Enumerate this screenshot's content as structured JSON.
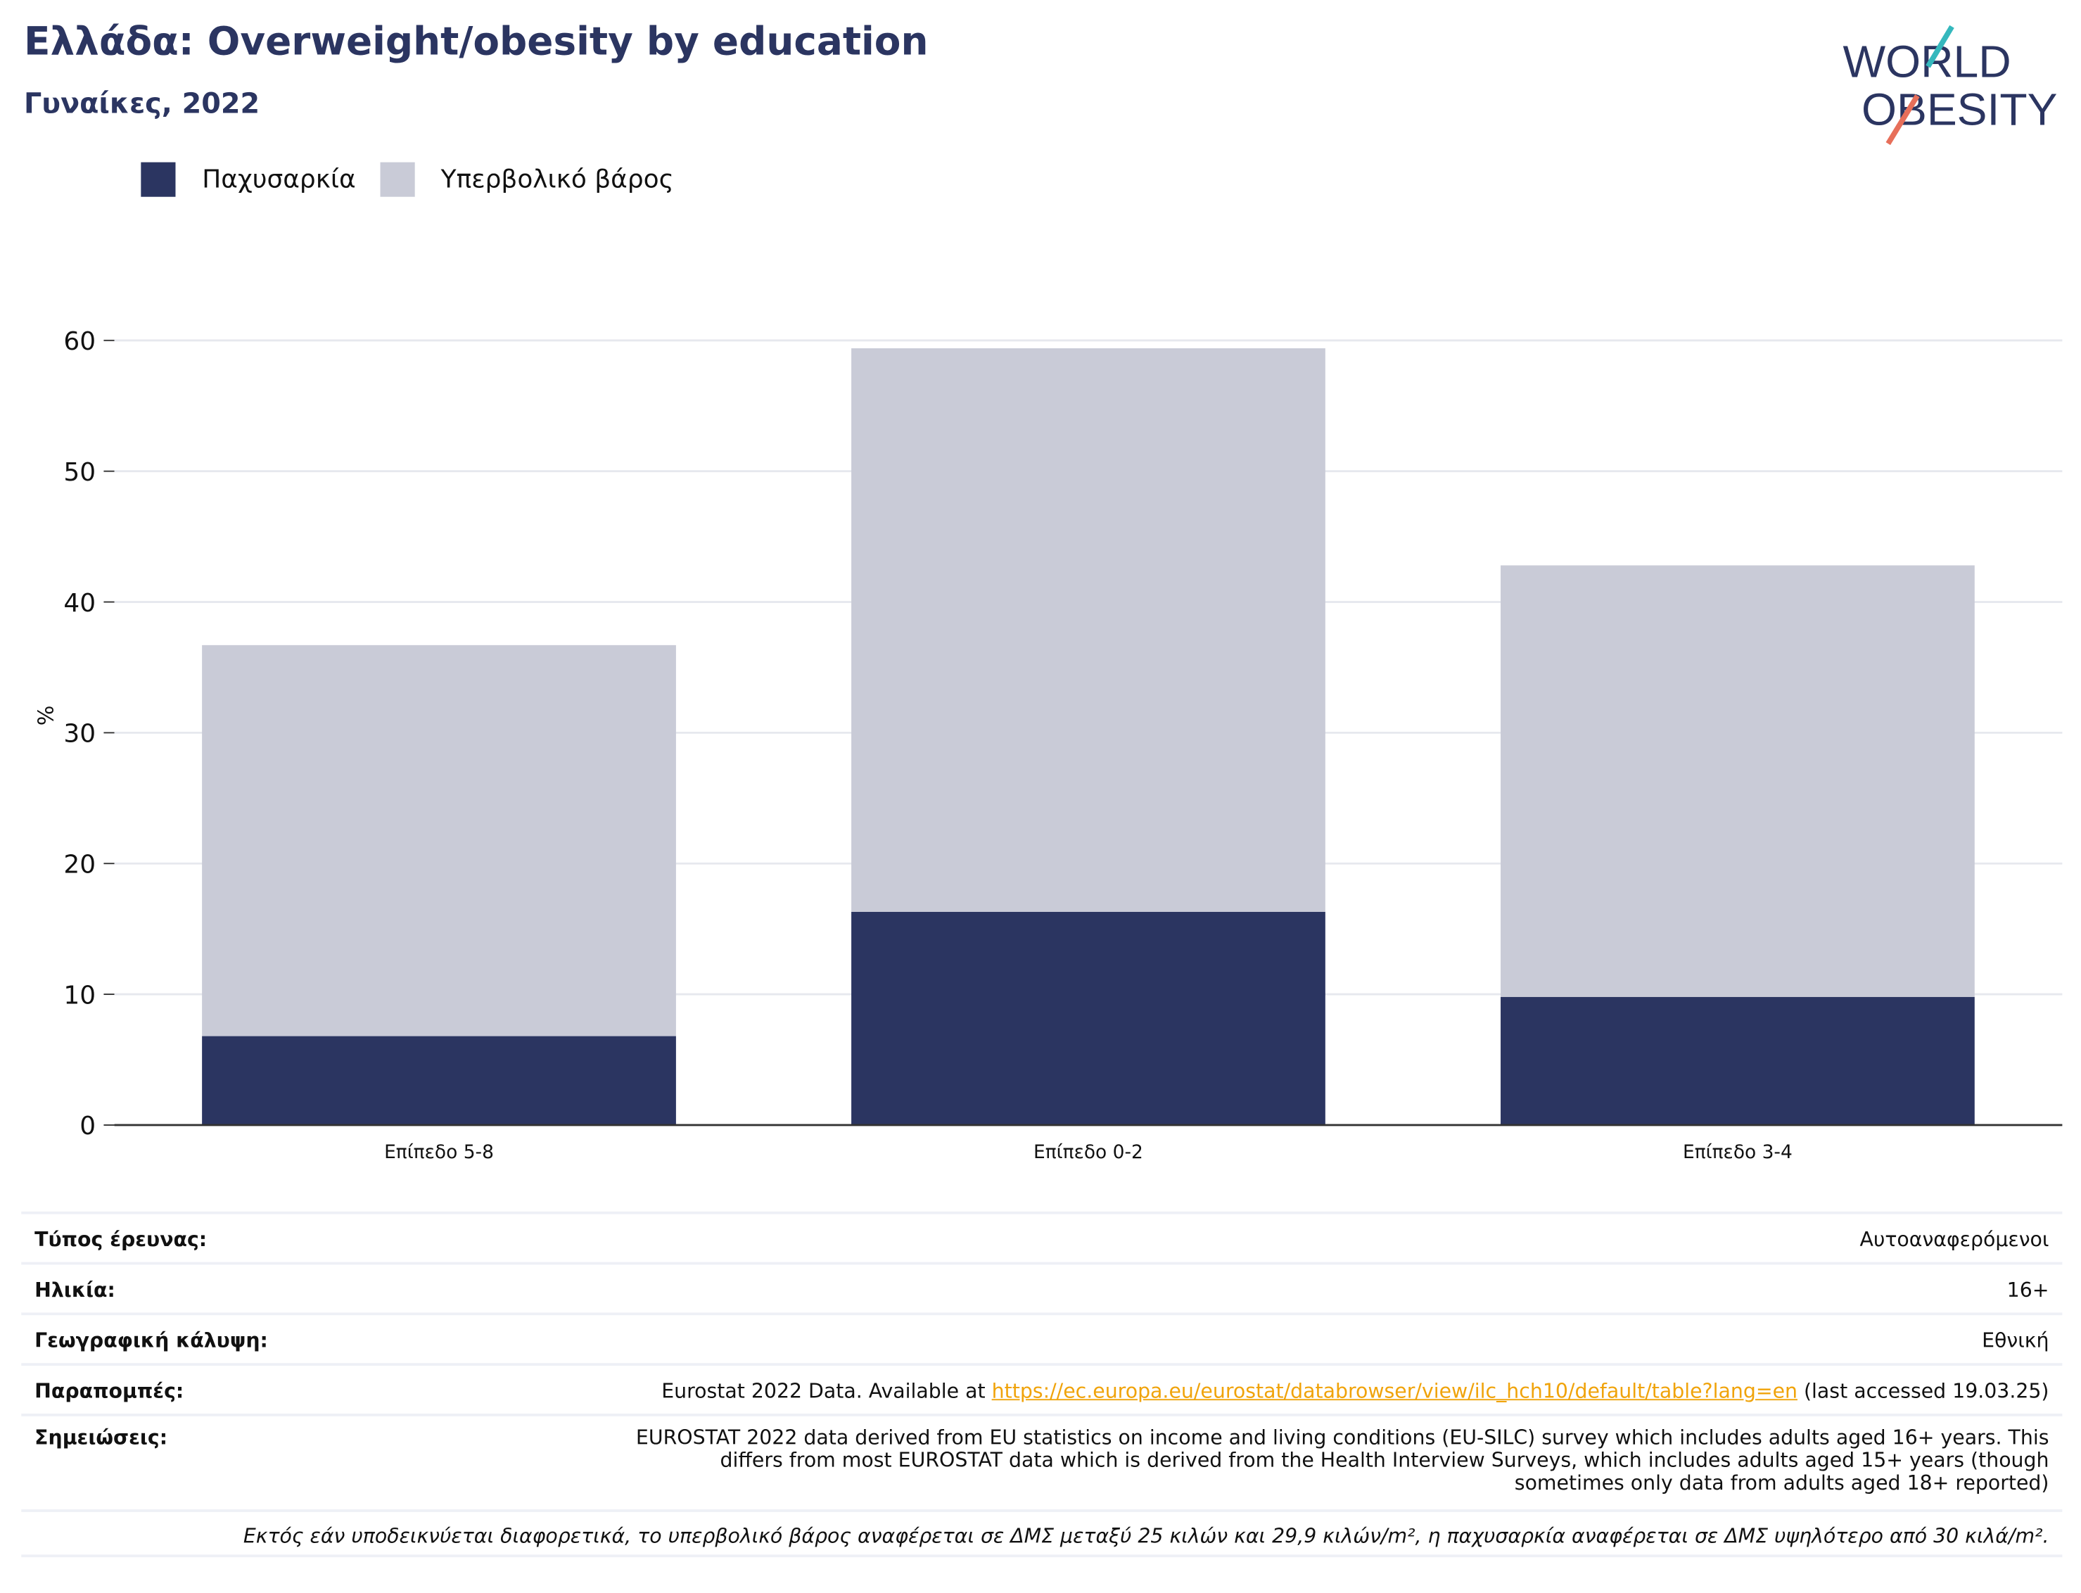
{
  "header": {
    "title": "Ελλάδα: Overweight/obesity by education",
    "subtitle": "Γυναίκες, 2022"
  },
  "logo": {
    "line1": "WORLD",
    "line2": "OBESITY"
  },
  "colors": {
    "obesity": "#2b3561",
    "overweight": "#c9cbd7",
    "link": "#f0a30a",
    "title": "#2b3561"
  },
  "chart_data": {
    "type": "bar",
    "stacked": true,
    "categories": [
      "Επίπεδο 5-8",
      "Επίπεδο 0-2",
      "Επίπεδο 3-4"
    ],
    "series": [
      {
        "name": "Παχυσαρκία",
        "values": [
          6.8,
          16.3,
          9.8
        ]
      },
      {
        "name": "Υπερβολικό βάρος",
        "values": [
          29.9,
          43.1,
          33.0
        ]
      }
    ],
    "ylabel": "%",
    "ylim": [
      0,
      60
    ],
    "yticks": [
      0,
      10,
      20,
      30,
      40,
      50,
      60
    ],
    "grid": true,
    "legend": "top-left"
  },
  "metadata": [
    {
      "label": "Τύπος έρευνας:",
      "value": "Αυτοαναφερόμενοι"
    },
    {
      "label": "Ηλικία:",
      "value": "16+"
    },
    {
      "label": "Γεωγραφική κάλυψη:",
      "value": "Εθνική"
    }
  ],
  "references": {
    "label": "Παραπομπές:",
    "prefix": "Eurostat 2022 Data. Available at ",
    "link": "https://ec.europa.eu/eurostat/databrowser/view/ilc_hch10/default/table?lang=en",
    "suffix": " (last accessed 19.03.25)"
  },
  "notes": {
    "label": "Σημειώσεις:",
    "lines": [
      "EUROSTAT 2022 data derived from EU statistics on income and living conditions (EU-SILC) survey which includes adults aged 16+ years. This",
      "differs from most EUROSTAT data which is derived from the Health Interview Surveys, which includes adults aged 15+ years (though",
      "sometimes only data from adults aged 18+ reported)"
    ]
  },
  "footnote": "Εκτός εάν υποδεικνύεται διαφορετικά, το υπερβολικό βάρος αναφέρεται σε ΔΜΣ μεταξύ 25 κιλών και 29,9 κιλών/m², η παχυσαρκία αναφέρεται σε ΔΜΣ υψηλότερο από 30 κιλά/m²."
}
